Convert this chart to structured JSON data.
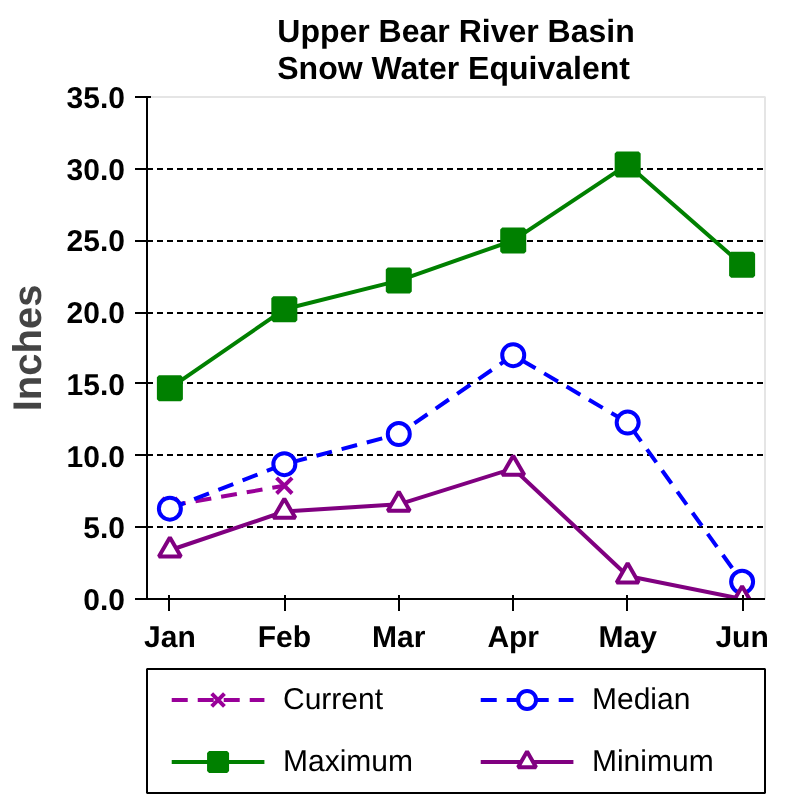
{
  "chart_data": {
    "type": "line",
    "title": "Upper Bear River Basin\nSnow Water Equivalent",
    "ylabel": "Inches",
    "categories": [
      "Jan",
      "Feb",
      "Mar",
      "Apr",
      "May",
      "Jun"
    ],
    "series": [
      {
        "name": "Current",
        "color": "#990099",
        "values": [
          6.5,
          7.9,
          null,
          null,
          null,
          null
        ],
        "marker": "cross",
        "line_style": "dashed"
      },
      {
        "name": "Median",
        "color": "#0000ff",
        "values": [
          6.3,
          9.4,
          11.5,
          17.0,
          12.3,
          1.2
        ],
        "marker": "circle",
        "line_style": "dashed"
      },
      {
        "name": "Maximum",
        "color": "#008000",
        "values": [
          14.7,
          20.2,
          22.2,
          25.0,
          30.3,
          23.3
        ],
        "marker": "square",
        "line_style": "solid"
      },
      {
        "name": "Minimum",
        "color": "#800080",
        "values": [
          3.4,
          6.1,
          6.6,
          9.1,
          1.6,
          0.0
        ],
        "marker": "triangle",
        "line_style": "solid"
      }
    ],
    "ylim": [
      0,
      35
    ],
    "yticks": [
      {
        "value": 0,
        "label": "0.0"
      },
      {
        "value": 5,
        "label": "5.0"
      },
      {
        "value": 10,
        "label": "10.0"
      },
      {
        "value": 15,
        "label": "15.0"
      },
      {
        "value": 20,
        "label": "20.0"
      },
      {
        "value": 25,
        "label": "25.0"
      },
      {
        "value": 30,
        "label": "30.0"
      },
      {
        "value": 35,
        "label": "35.0"
      }
    ],
    "grid": "y",
    "legend": "bottom"
  }
}
